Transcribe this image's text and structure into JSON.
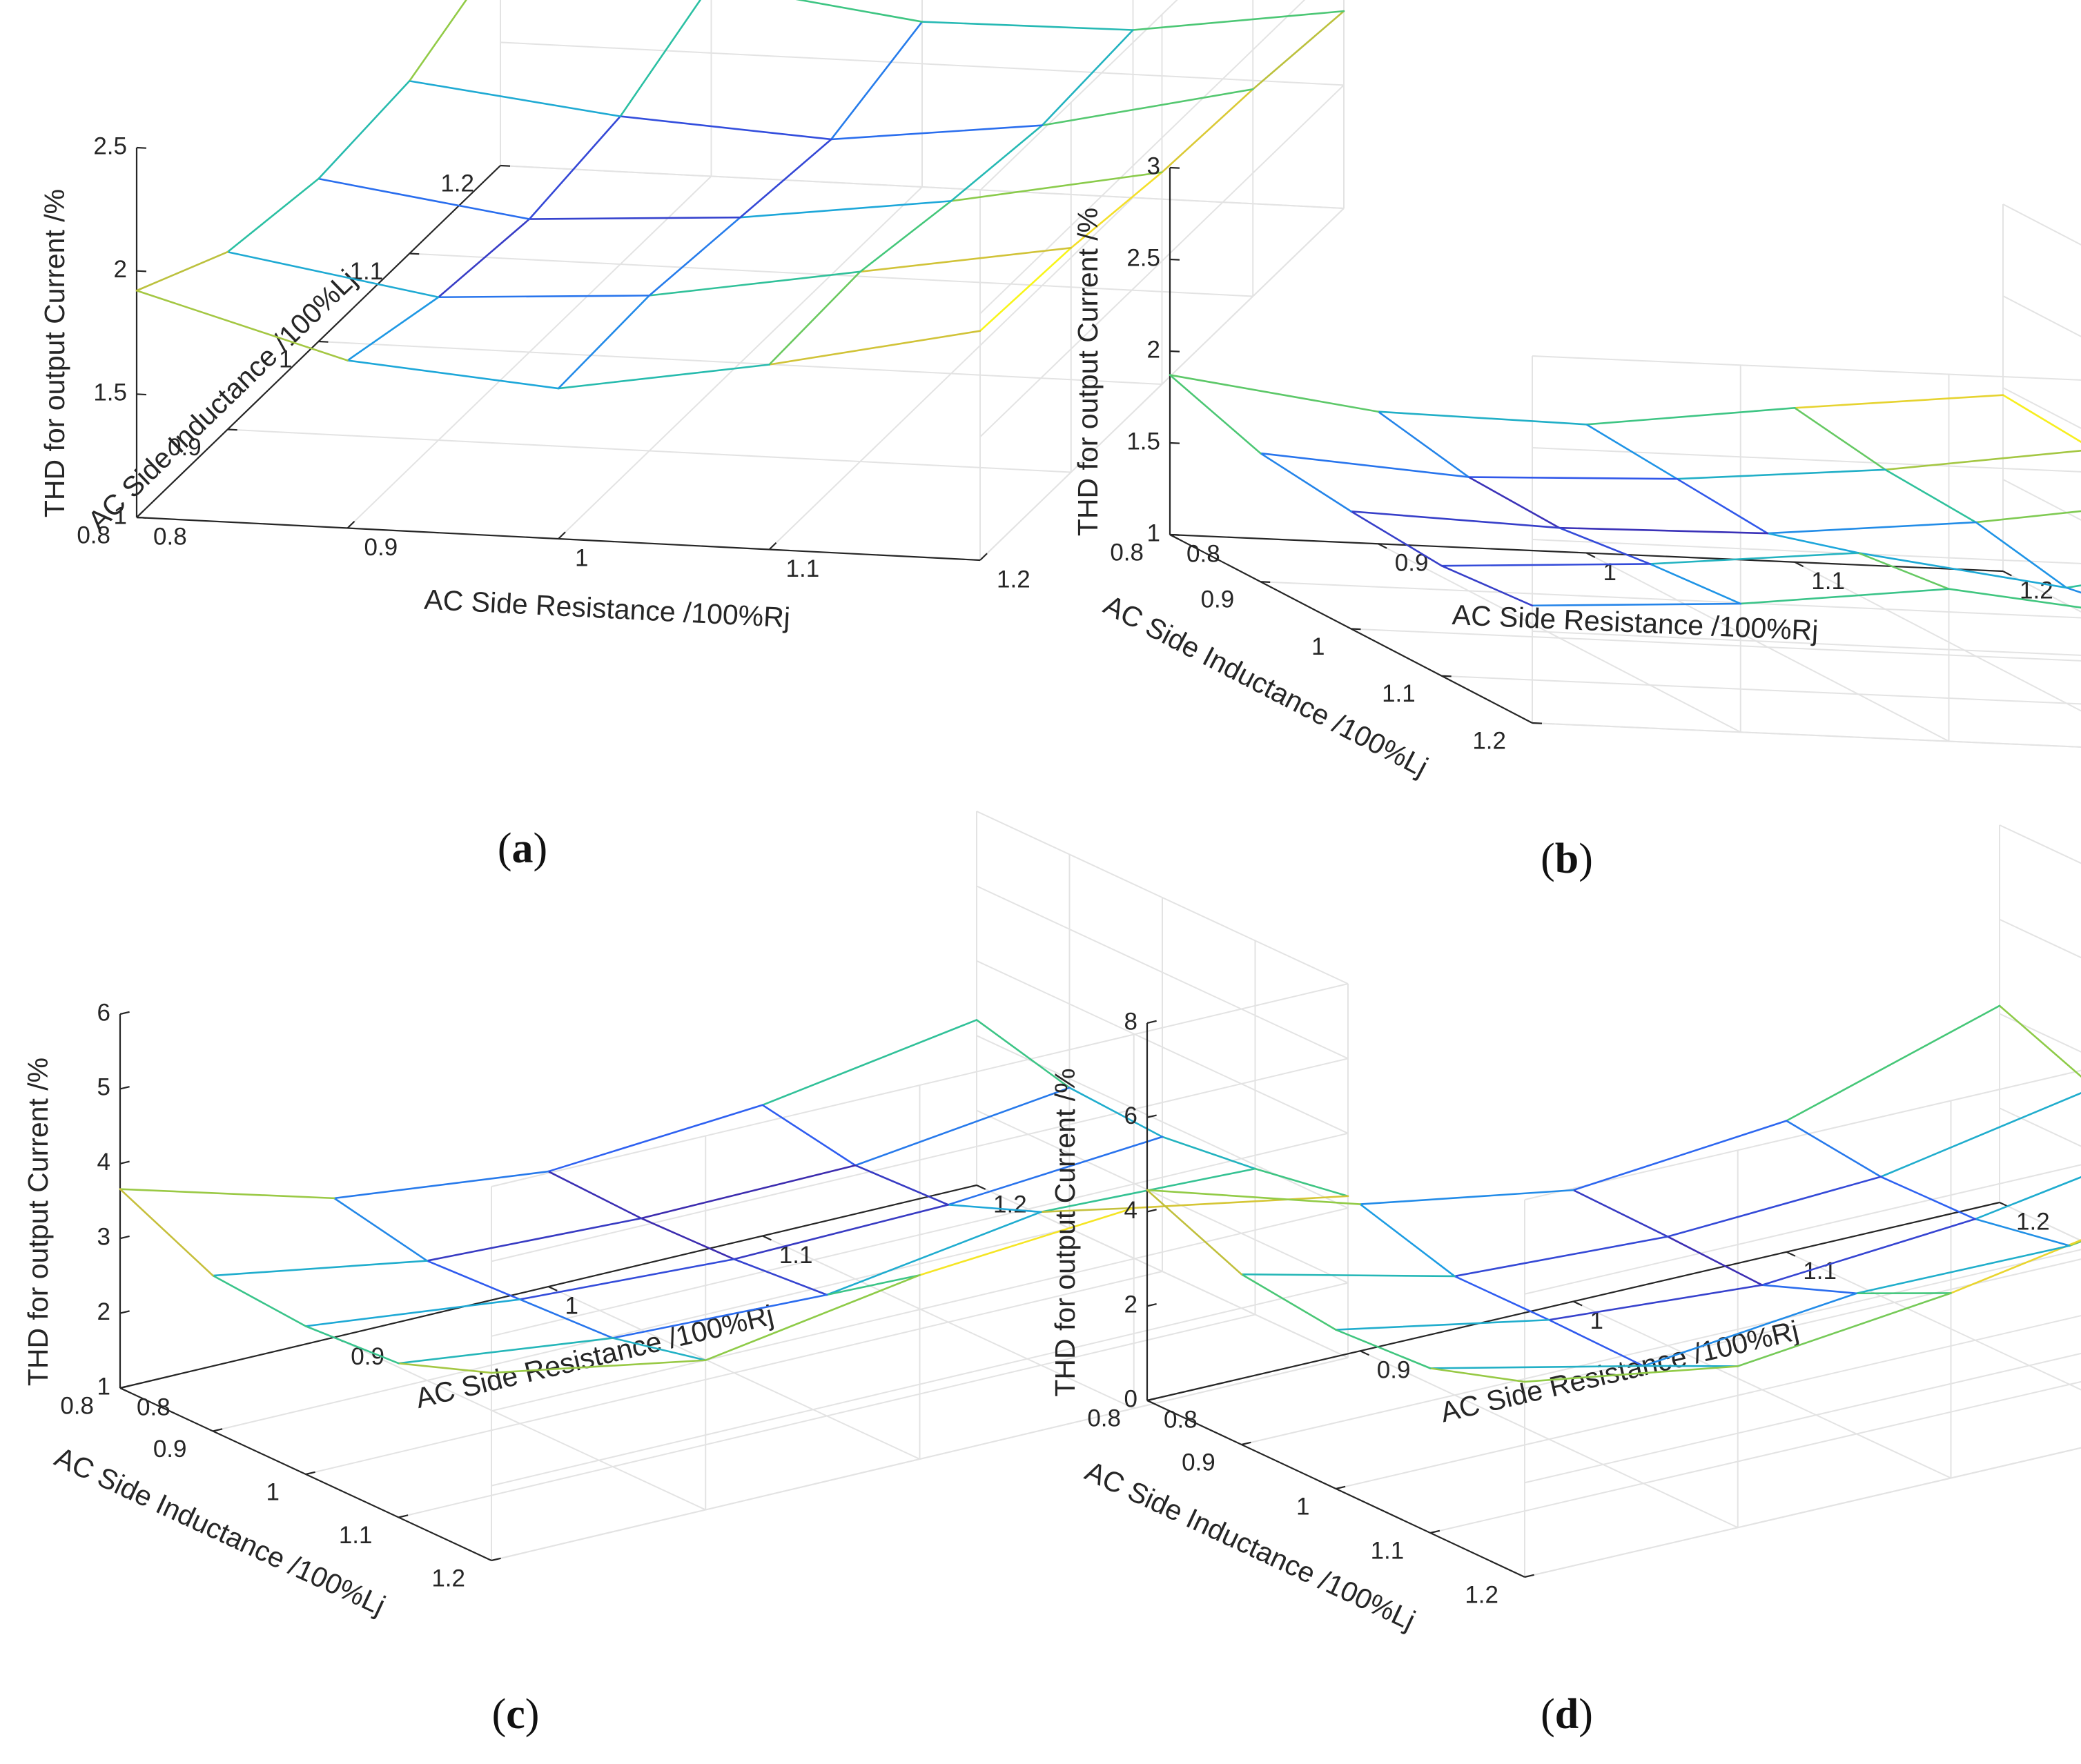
{
  "figure": {
    "colors": {
      "background": "#ffffff",
      "axis": "#262626",
      "grid": "#e3e3e3",
      "colormap": [
        "#3e26a8",
        "#2f5ef2",
        "#1ba3e2",
        "#29bfa6",
        "#44c77a",
        "#90cb47",
        "#cbbe3a",
        "#f4dd2b",
        "#f9fb15"
      ]
    }
  },
  "chart_data": [
    {
      "panel": "a",
      "caption": "(a)",
      "caption_letter": "a",
      "type": "surface-mesh",
      "xlabel": "AC Side Inductance /100%Lj",
      "ylabel": "AC Side Resistance /100%Rj",
      "zlabel": "THD for output Current /%",
      "x_ticks": [
        "0.8",
        "0.9",
        "1",
        "1.1",
        "1.2"
      ],
      "y_ticks": [
        "0.8",
        "0.9",
        "1",
        "1.1",
        "1.2"
      ],
      "z_ticks": [
        "1",
        "1.5",
        "2",
        "2.5"
      ],
      "xlim": [
        0.8,
        1.2
      ],
      "ylim": [
        0.8,
        1.2
      ],
      "zlim": [
        1,
        2.5
      ],
      "grid": true,
      "x": [
        0.8,
        0.9,
        1.0,
        1.1,
        1.2
      ],
      "y": [
        0.8,
        0.9,
        1.0,
        1.1,
        1.2
      ],
      "z": [
        [
          1.92,
          1.68,
          1.61,
          1.75,
          1.93
        ],
        [
          1.72,
          1.58,
          1.63,
          1.77,
          1.91
        ],
        [
          1.66,
          1.54,
          1.59,
          1.7,
          1.86
        ],
        [
          1.7,
          1.6,
          1.55,
          1.65,
          1.84
        ],
        [
          1.87,
          1.78,
          1.67,
          1.68,
          1.8
        ]
      ]
    },
    {
      "panel": "b",
      "caption": "(b)",
      "caption_letter": "b",
      "type": "surface-mesh",
      "xlabel": "AC Side Inductance /100%Lj",
      "ylabel": "AC Side Resistance /100%Rj",
      "zlabel": "THD for output Current /%",
      "x_ticks": [
        "0.8",
        "0.9",
        "1",
        "1.1",
        "1.2"
      ],
      "y_ticks": [
        "0.8",
        "0.9",
        "1",
        "1.1",
        "1.2"
      ],
      "z_ticks": [
        "1",
        "1.5",
        "2",
        "2.5",
        "3"
      ],
      "xlim": [
        0.8,
        1.2
      ],
      "ylim": [
        0.8,
        1.2
      ],
      "zlim": [
        1,
        3
      ],
      "grid": true,
      "x": [
        0.8,
        0.9,
        1.0,
        1.1,
        1.2
      ],
      "y": [
        0.8,
        0.9,
        1.0,
        1.1,
        1.2
      ],
      "z": [
        [
          1.87,
          1.72,
          1.7,
          1.84,
          1.96
        ],
        [
          1.7,
          1.62,
          1.66,
          1.76,
          1.92
        ],
        [
          1.64,
          1.6,
          1.62,
          1.73,
          1.9
        ],
        [
          1.6,
          1.66,
          1.77,
          1.63,
          1.86
        ],
        [
          1.64,
          1.7,
          1.83,
          1.72,
          1.79
        ]
      ]
    },
    {
      "panel": "c",
      "caption": "(c)",
      "caption_letter": "c",
      "type": "surface-mesh",
      "xlabel": "AC Side Inductance /100%Lj",
      "ylabel": "AC Side Resistance /100%Rj",
      "zlabel": "THD for output Current /%",
      "x_ticks": [
        "0.8",
        "0.9",
        "1",
        "1.1",
        "1.2"
      ],
      "y_ticks": [
        "0.8",
        "0.9",
        "1",
        "1.1",
        "1.2"
      ],
      "z_ticks": [
        "1",
        "2",
        "3",
        "4",
        "5",
        "6"
      ],
      "xlim": [
        0.8,
        1.2
      ],
      "ylim": [
        0.8,
        1.2
      ],
      "zlim": [
        1,
        6
      ],
      "grid": true,
      "x": [
        0.8,
        0.9,
        1.0,
        1.1,
        1.2
      ],
      "y": [
        0.8,
        0.9,
        1.0,
        1.1,
        1.2
      ],
      "z": [
        [
          3.66,
          2.86,
          2.54,
          2.75,
          3.21
        ],
        [
          3.08,
          2.6,
          2.49,
          2.52,
          2.88
        ],
        [
          2.98,
          2.66,
          2.52,
          2.57,
          2.8
        ],
        [
          3.06,
          2.72,
          2.62,
          3.05,
          2.95
        ],
        [
          3.51,
          3.0,
          3.46,
          3.68,
          3.16
        ]
      ]
    },
    {
      "panel": "d",
      "caption": "(d)",
      "caption_letter": "d",
      "type": "surface-mesh",
      "xlabel": "AC Side Inductance /100%Lj",
      "ylabel": "AC Side Resistance /100%Rj",
      "zlabel": "THD for output Current /%",
      "x_ticks": [
        "0.8",
        "0.9",
        "1",
        "1.1",
        "1.2"
      ],
      "y_ticks": [
        "0.8",
        "0.9",
        "1",
        "1.1",
        "1.2"
      ],
      "z_ticks": [
        "0",
        "2",
        "4",
        "6",
        "8"
      ],
      "xlim": [
        0.8,
        1.2
      ],
      "ylim": [
        0.8,
        1.2
      ],
      "zlim": [
        0,
        8
      ],
      "grid": true,
      "x": [
        0.8,
        0.9,
        1.0,
        1.1,
        1.2
      ],
      "y": [
        0.8,
        0.9,
        1.0,
        1.1,
        1.2
      ],
      "z": [
        [
          4.46,
          3.11,
          2.36,
          2.78,
          4.17
        ],
        [
          3.61,
          2.52,
          2.31,
          2.53,
          3.37
        ],
        [
          3.37,
          2.53,
          2.22,
          2.57,
          3.31
        ],
        [
          3.49,
          2.49,
          2.98,
          2.94,
          3.58
        ],
        [
          4.14,
          3.42,
          3.92,
          4.71,
          4.27
        ]
      ]
    }
  ]
}
